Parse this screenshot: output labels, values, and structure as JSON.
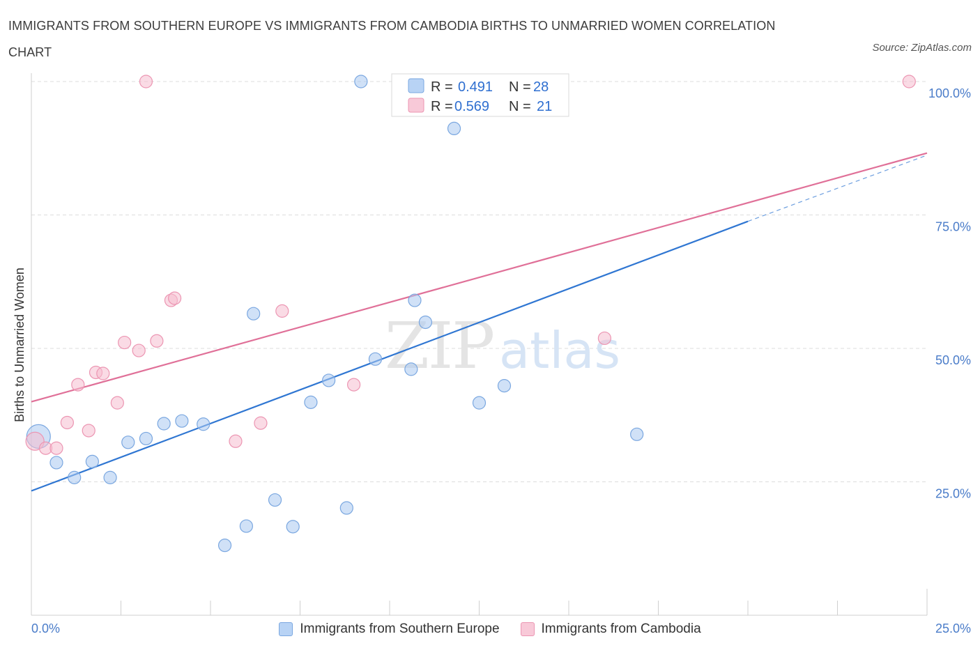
{
  "title": "IMMIGRANTS FROM SOUTHERN EUROPE VS IMMIGRANTS FROM CAMBODIA BIRTHS TO UNMARRIED WOMEN CORRELATION CHART",
  "source": "Source: ZipAtlas.com",
  "watermark": {
    "zip": "ZIP",
    "atlas": "atlas"
  },
  "legend": {
    "r_label": "R =",
    "n_label": "N =",
    "rows": [
      {
        "r": "0.491",
        "n": "28"
      },
      {
        "r": "0.569",
        "n": "21"
      }
    ]
  },
  "chart_data": {
    "type": "scatter",
    "xlabel": "",
    "ylabel": "Births to Unmarried Women",
    "xlim": [
      0,
      25
    ],
    "ylim": [
      0,
      100
    ],
    "x_tick_labels": [
      "0.0%",
      "25.0%"
    ],
    "y_tick_labels": [
      "25.0%",
      "50.0%",
      "75.0%",
      "100.0%"
    ],
    "grid": true,
    "legend_position": "top-center",
    "series": [
      {
        "name": "Immigrants from Southern Europe",
        "color": "#a9c9f0",
        "edge": "#7aa7e0",
        "trend_color": "#2f76d2",
        "trend": {
          "x0": 0,
          "y0": 23.3,
          "x1": 20,
          "y1": 73.8,
          "dash_to_x": 25,
          "dash_to_y": 86.2
        },
        "points": [
          [
            0.2,
            33.5
          ],
          [
            0.7,
            28.6
          ],
          [
            1.2,
            25.8
          ],
          [
            1.7,
            28.8
          ],
          [
            2.2,
            25.8
          ],
          [
            2.7,
            32.4
          ],
          [
            3.2,
            33.1
          ],
          [
            3.7,
            35.9
          ],
          [
            4.2,
            36.4
          ],
          [
            4.8,
            35.8
          ],
          [
            5.4,
            13.1
          ],
          [
            6.0,
            16.7
          ],
          [
            6.2,
            56.5
          ],
          [
            6.8,
            21.6
          ],
          [
            7.3,
            16.6
          ],
          [
            7.8,
            39.9
          ],
          [
            8.3,
            44.0
          ],
          [
            8.8,
            20.1
          ],
          [
            9.2,
            100.0
          ],
          [
            9.6,
            48.0
          ],
          [
            10.6,
            46.1
          ],
          [
            10.7,
            59.0
          ],
          [
            11.0,
            54.9
          ],
          [
            11.8,
            91.2
          ],
          [
            12.5,
            39.8
          ],
          [
            13.2,
            43.0
          ],
          [
            14.1,
            100.0
          ],
          [
            16.9,
            33.9
          ]
        ],
        "sizes": [
          34,
          18,
          18,
          18,
          18,
          18,
          18,
          18,
          18,
          18,
          18,
          18,
          18,
          18,
          18,
          18,
          18,
          18,
          18,
          18,
          18,
          18,
          18,
          18,
          18,
          18,
          18,
          18
        ]
      },
      {
        "name": "Immigrants from Cambodia",
        "color": "#f6bdd0",
        "edge": "#ec95b2",
        "trend_color": "#e07098",
        "trend": {
          "x0": 0,
          "y0": 40.0,
          "x1": 25,
          "y1": 86.6
        },
        "points": [
          [
            0.1,
            32.6
          ],
          [
            0.4,
            31.3
          ],
          [
            0.7,
            31.3
          ],
          [
            1.0,
            36.1
          ],
          [
            1.3,
            43.2
          ],
          [
            1.6,
            34.6
          ],
          [
            1.8,
            45.5
          ],
          [
            2.0,
            45.3
          ],
          [
            2.4,
            39.8
          ],
          [
            2.6,
            51.1
          ],
          [
            3.0,
            49.6
          ],
          [
            3.2,
            100.0
          ],
          [
            3.5,
            51.4
          ],
          [
            3.9,
            59.0
          ],
          [
            4.0,
            59.4
          ],
          [
            5.7,
            32.6
          ],
          [
            6.4,
            36.0
          ],
          [
            7.0,
            57.0
          ],
          [
            9.0,
            43.2
          ],
          [
            16.0,
            51.9
          ],
          [
            24.5,
            100.0
          ]
        ],
        "sizes": [
          26,
          18,
          18,
          18,
          18,
          18,
          18,
          18,
          18,
          18,
          18,
          18,
          18,
          18,
          18,
          18,
          18,
          18,
          18,
          18,
          18
        ]
      }
    ]
  }
}
